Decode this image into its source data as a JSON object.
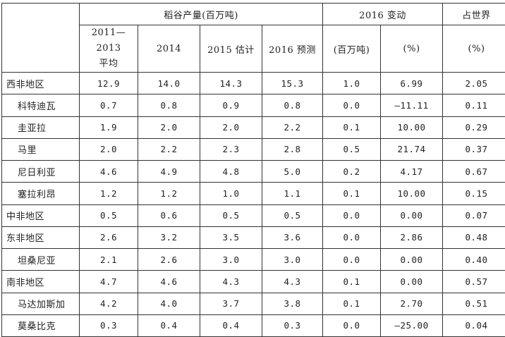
{
  "header": {
    "rice_production": "稻谷产量(百万吨)",
    "change_2016": "2016 变动",
    "world_share": "占世界",
    "col_avg_line1": "2011—2013",
    "col_avg_line2": "平均",
    "col_2014": "2014",
    "col_2015": "2015 估计",
    "col_2016": "2016 预测",
    "col_change_mt": "(百万吨)",
    "col_change_pct": "(%)",
    "col_share_pct": "(%)"
  },
  "rows": [
    {
      "name": "西非地区",
      "sub": false,
      "avg": "12.9",
      "y2014": "14.0",
      "y2015": "14.3",
      "y2016": "15.3",
      "chg": "1.0",
      "pct": "6.99",
      "share": "2.05"
    },
    {
      "name": "科特迪瓦",
      "sub": true,
      "avg": "0.7",
      "y2014": "0.8",
      "y2015": "0.9",
      "y2016": "0.8",
      "chg": "0.0",
      "pct": "—11.11",
      "share": "0.11"
    },
    {
      "name": "圭亚拉",
      "sub": true,
      "avg": "1.9",
      "y2014": "2.0",
      "y2015": "2.0",
      "y2016": "2.2",
      "chg": "0.1",
      "pct": "10.00",
      "share": "0.29"
    },
    {
      "name": "马里",
      "sub": true,
      "avg": "2.0",
      "y2014": "2.2",
      "y2015": "2.3",
      "y2016": "2.8",
      "chg": "0.5",
      "pct": "21.74",
      "share": "0.37"
    },
    {
      "name": "尼日利亚",
      "sub": true,
      "avg": "4.6",
      "y2014": "4.9",
      "y2015": "4.8",
      "y2016": "5.0",
      "chg": "0.2",
      "pct": "4.17",
      "share": "0.67"
    },
    {
      "name": "塞拉利昂",
      "sub": true,
      "avg": "1.2",
      "y2014": "1.2",
      "y2015": "1.0",
      "y2016": "1.1",
      "chg": "0.1",
      "pct": "10.00",
      "share": "0.15"
    },
    {
      "name": "中非地区",
      "sub": false,
      "avg": "0.5",
      "y2014": "0.6",
      "y2015": "0.5",
      "y2016": "0.5",
      "chg": "0.0",
      "pct": "0.00",
      "share": "0.07"
    },
    {
      "name": "东非地区",
      "sub": false,
      "avg": "2.6",
      "y2014": "3.2",
      "y2015": "3.5",
      "y2016": "3.6",
      "chg": "0.0",
      "pct": "2.86",
      "share": "0.48"
    },
    {
      "name": "坦桑尼亚",
      "sub": true,
      "avg": "2.1",
      "y2014": "2.6",
      "y2015": "3.0",
      "y2016": "3.0",
      "chg": "0.0",
      "pct": "0.00",
      "share": "0.40"
    },
    {
      "name": "南非地区",
      "sub": false,
      "avg": "4.7",
      "y2014": "4.6",
      "y2015": "4.3",
      "y2016": "4.3",
      "chg": "0.1",
      "pct": "0.00",
      "share": "0.57"
    },
    {
      "name": "马达加斯加",
      "sub": true,
      "avg": "4.2",
      "y2014": "4.0",
      "y2015": "3.7",
      "y2016": "3.8",
      "chg": "0.1",
      "pct": "2.70",
      "share": "0.51"
    },
    {
      "name": "莫桑比克",
      "sub": true,
      "avg": "0.3",
      "y2014": "0.4",
      "y2015": "0.4",
      "y2016": "0.3",
      "chg": "0.0",
      "pct": "—25.00",
      "share": "0.04"
    }
  ]
}
